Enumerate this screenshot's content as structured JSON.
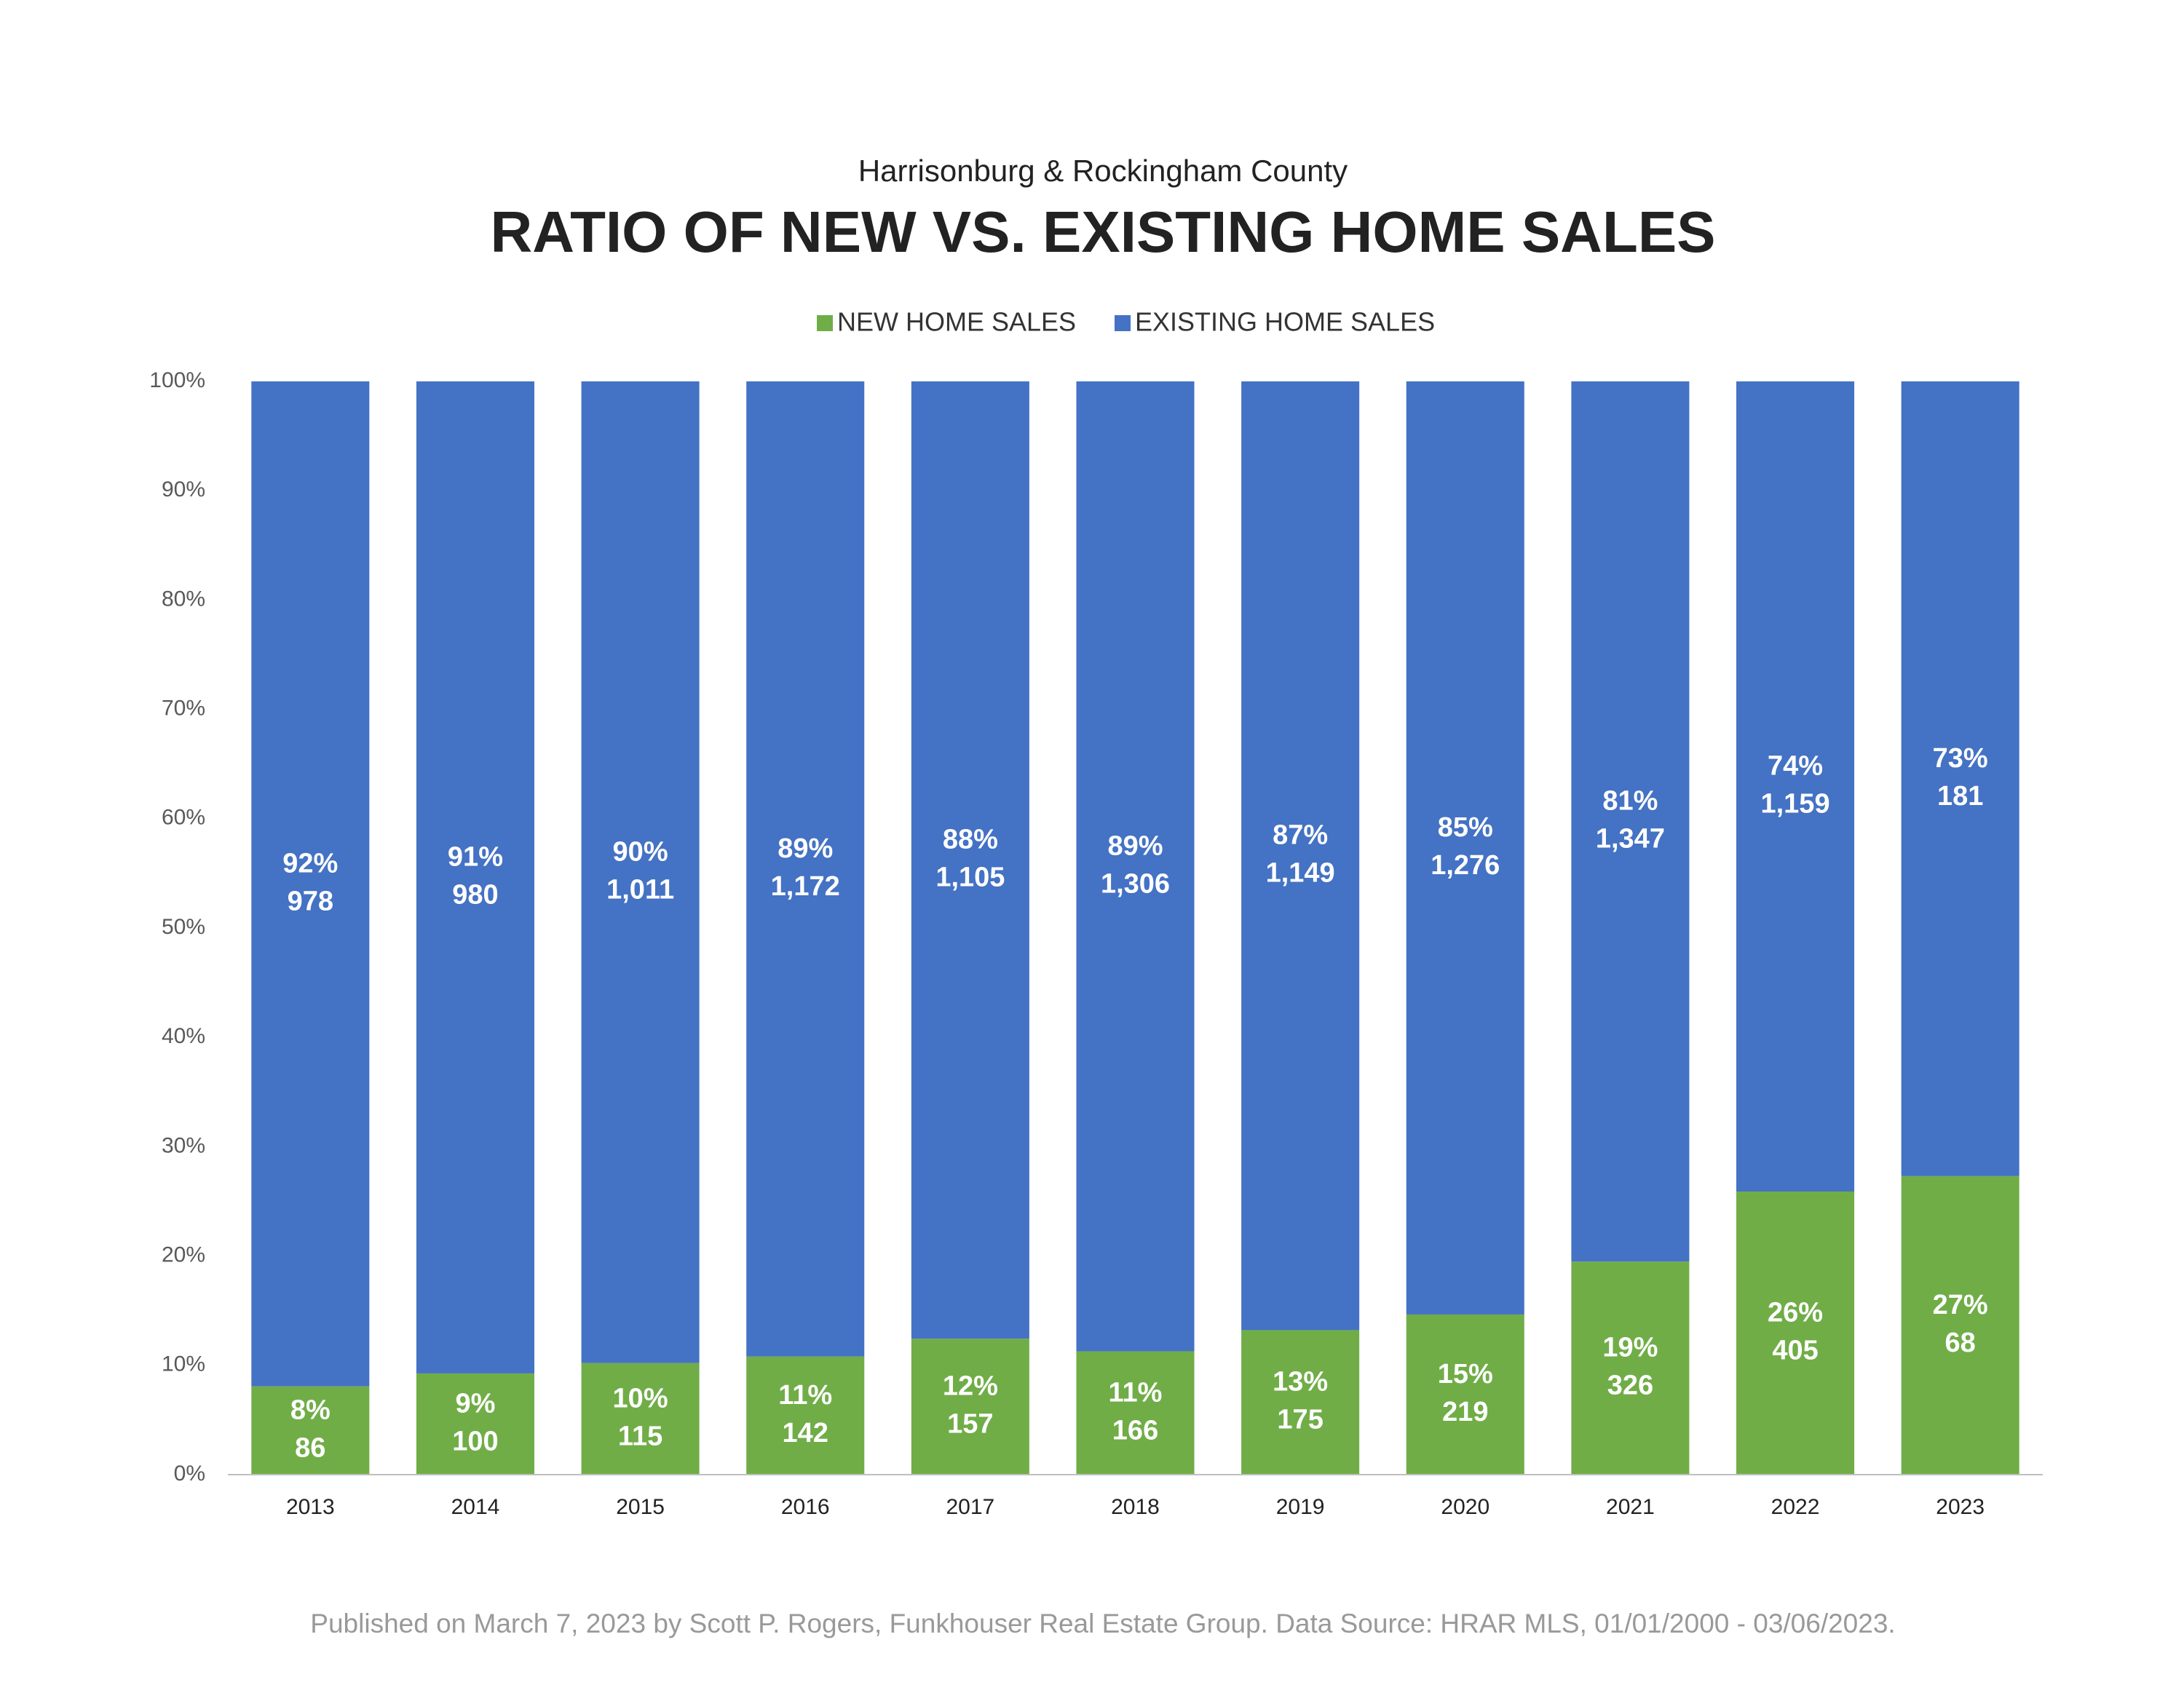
{
  "chart_data": {
    "type": "stacked_bar_100",
    "subtitle": "Harrisonburg & Rockingham County",
    "title": "RATIO OF NEW VS. EXISTING HOME SALES",
    "categories": [
      "2013",
      "2014",
      "2015",
      "2016",
      "2017",
      "2018",
      "2019",
      "2020",
      "2021",
      "2022",
      "2023"
    ],
    "series": [
      {
        "name": "NEW HOME SALES",
        "color": "#70ad47",
        "values": [
          8.08,
          9.26,
          10.21,
          10.81,
          12.44,
          11.28,
          13.22,
          14.65,
          19.49,
          25.9,
          27.31
        ],
        "value_labels": [
          "8%",
          "9%",
          "10%",
          "11%",
          "12%",
          "11%",
          "13%",
          "15%",
          "19%",
          "26%",
          "27%"
        ],
        "count_labels": [
          "86",
          "100",
          "115",
          "142",
          "157",
          "166",
          "175",
          "219",
          "326",
          "405",
          "68"
        ]
      },
      {
        "name": "EXISTING HOME SALES",
        "color": "#4472c4",
        "values": [
          91.92,
          90.74,
          89.79,
          89.19,
          87.56,
          88.72,
          86.78,
          85.35,
          80.51,
          74.1,
          72.69
        ],
        "value_labels": [
          "92%",
          "91%",
          "90%",
          "89%",
          "88%",
          "89%",
          "87%",
          "85%",
          "81%",
          "74%",
          "73%"
        ],
        "count_labels": [
          "978",
          "980",
          "1,011",
          "1,172",
          "1,105",
          "1,306",
          "1,149",
          "1,276",
          "1,347",
          "1,159",
          "181"
        ]
      }
    ],
    "ylim": [
      0,
      100
    ],
    "yticks": [
      {
        "value": 0,
        "label": "0%"
      },
      {
        "value": 10,
        "label": "10%"
      },
      {
        "value": 20,
        "label": "20%"
      },
      {
        "value": 30,
        "label": "30%"
      },
      {
        "value": 40,
        "label": "40%"
      },
      {
        "value": 50,
        "label": "50%"
      },
      {
        "value": 60,
        "label": "60%"
      },
      {
        "value": 70,
        "label": "70%"
      },
      {
        "value": 80,
        "label": "80%"
      },
      {
        "value": 90,
        "label": "90%"
      },
      {
        "value": 100,
        "label": "100%"
      }
    ],
    "grid": false,
    "legend": "top",
    "footnote": "Published on March 7, 2023 by Scott P. Rogers, Funkhouser Real Estate Group. Data Source: HRAR MLS, 01/01/2000 - 03/06/2023."
  }
}
